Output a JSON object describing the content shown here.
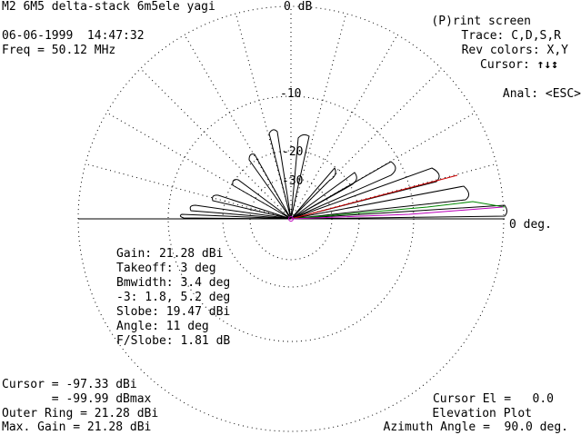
{
  "header": {
    "title": "M2 6M5 delta-stack 6m5ele yagi",
    "date_time": "06-06-1999  14:47:32",
    "freq": "Freq = 50.12 MHz",
    "top_db_label": "0 dB"
  },
  "menu": {
    "print": "(P)rint screen",
    "trace": "Trace: C,D,S,R",
    "rev_colors": "Rev colors: X,Y",
    "cursor_prefix": "Cursor:",
    "cursor_arrows": "↑↓↕",
    "anal": "Anal: <ESC>"
  },
  "plot": {
    "ring_labels": [
      "-10",
      "-20",
      "-30"
    ],
    "zero_deg_label": "0 deg."
  },
  "stats": {
    "gain": "Gain: 21.28 dBi",
    "takeoff": "Takeoff: 3 deg",
    "bmwidth": "Bmwidth: 3.4 deg",
    "minus3": "-3: 1.8, 5.2 deg",
    "slobe": "Slobe: 19.47 dBi",
    "angle": "Angle: 11 deg",
    "fslobe": "F/Slobe: 1.81 dB"
  },
  "footer_left": {
    "cursor": "Cursor = -97.33 dBi",
    "cursor_dbmax": "       = -99.99 dBmax",
    "outer_ring": "Outer Ring = 21.28 dBi",
    "max_gain": "Max. Gain = 21.28 dBi"
  },
  "footer_right": {
    "cursor_el": "Cursor El =   0.0",
    "plot_type": "Elevation Plot",
    "azimuth": "Azimuth Angle =  90.0 deg."
  },
  "colors": {
    "pattern": "#000000",
    "grid": "#000000",
    "trace_red": "#cc0000",
    "trace_green": "#008800",
    "trace_purple": "#bb00bb"
  }
}
